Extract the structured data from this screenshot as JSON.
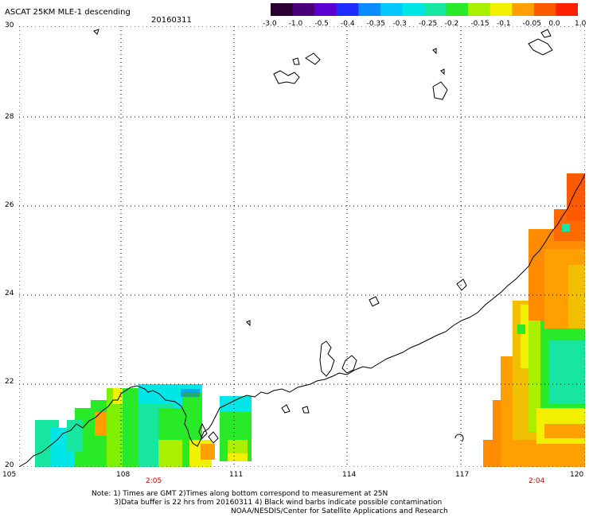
{
  "header": {
    "title": "ASCAT 25KM MLE-1 descending",
    "date": "20160311"
  },
  "colorbar": {
    "labels": [
      "-3.0",
      "-1.0",
      "-0.5",
      "-0.4",
      "-0.35",
      "-0.3",
      "-0.25",
      "-0.2",
      "-0.15",
      "-0.1",
      "-0.05",
      "0.0",
      "1.0"
    ],
    "colors": [
      "#2a0030",
      "#4a007a",
      "#5a00d0",
      "#1f2cff",
      "#0a8cff",
      "#00c8ff",
      "#00e6e6",
      "#17e6a0",
      "#28ea28",
      "#a8f000",
      "#f0f000",
      "#ffa000",
      "#ff5a00",
      "#ff2000"
    ]
  },
  "map": {
    "lat_labels": [
      "30",
      "28",
      "26",
      "24",
      "22",
      "20"
    ],
    "lon_labels": [
      "105",
      "108",
      "111",
      "114",
      "117",
      "120"
    ],
    "pass_times": [
      "2:05",
      "2:04"
    ],
    "pass_time_color": "#cc0000"
  },
  "footer": {
    "line1": "Note: 1) Times are GMT 2)Times along bottom correspond to measurement at 25N",
    "line2": "3)Data buffer is 22 hrs from 20160311 4) Black wind barbs indicate possible contamination",
    "line3": "NOAA/NESDIS/Center for Satellite Applications and Research"
  }
}
